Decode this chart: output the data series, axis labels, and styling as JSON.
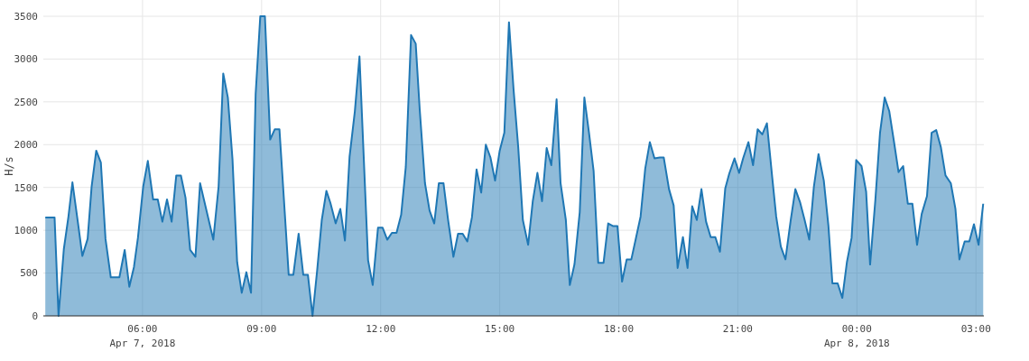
{
  "chart_data": {
    "type": "area",
    "ylabel": "H/s",
    "color": "#1f77b4",
    "grid": true,
    "xlim": [
      "2018-04-07T03:30",
      "2018-04-08T03:12"
    ],
    "ylim": [
      0,
      3500
    ],
    "xticks": [
      {
        "value": "2018-04-07T06:00",
        "label": "06:00\nApr 7, 2018"
      },
      {
        "value": "2018-04-07T09:00",
        "label": "09:00"
      },
      {
        "value": "2018-04-07T12:00",
        "label": "12:00"
      },
      {
        "value": "2018-04-07T15:00",
        "label": "15:00"
      },
      {
        "value": "2018-04-07T18:00",
        "label": "18:00"
      },
      {
        "value": "2018-04-07T21:00",
        "label": "21:00"
      },
      {
        "value": "2018-04-08T00:00",
        "label": "00:00\nApr 8, 2018"
      },
      {
        "value": "2018-04-08T03:00",
        "label": "03:00"
      }
    ],
    "yticks": [
      0,
      500,
      1000,
      1500,
      2000,
      2500,
      3000,
      3500
    ],
    "x": [
      "2018-04-07T03:33",
      "2018-04-07T03:47",
      "2018-04-07T03:53",
      "2018-04-07T04:01",
      "2018-04-07T04:08",
      "2018-04-07T04:14",
      "2018-04-07T04:23",
      "2018-04-07T04:29",
      "2018-04-07T04:37",
      "2018-04-07T04:43",
      "2018-04-07T04:50",
      "2018-04-07T04:57",
      "2018-04-07T05:04",
      "2018-04-07T05:12",
      "2018-04-07T05:25",
      "2018-04-07T05:33",
      "2018-04-07T05:40",
      "2018-04-07T05:47",
      "2018-04-07T05:53",
      "2018-04-07T06:01",
      "2018-04-07T06:08",
      "2018-04-07T06:16",
      "2018-04-07T06:23",
      "2018-04-07T06:30",
      "2018-04-07T06:37",
      "2018-04-07T06:44",
      "2018-04-07T06:51",
      "2018-04-07T06:58",
      "2018-04-07T07:05",
      "2018-04-07T07:12",
      "2018-04-07T07:20",
      "2018-04-07T07:27",
      "2018-04-07T07:47",
      "2018-04-07T07:55",
      "2018-04-07T08:02",
      "2018-04-07T08:09",
      "2018-04-07T08:16",
      "2018-04-07T08:23",
      "2018-04-07T08:30",
      "2018-04-07T08:37",
      "2018-04-07T08:44",
      "2018-04-07T08:51",
      "2018-04-07T08:58",
      "2018-04-07T09:05",
      "2018-04-07T09:13",
      "2018-04-07T09:20",
      "2018-04-07T09:27",
      "2018-04-07T09:41",
      "2018-04-07T09:48",
      "2018-04-07T09:56",
      "2018-04-07T10:03",
      "2018-04-07T10:10",
      "2018-04-07T10:17",
      "2018-04-07T10:24",
      "2018-04-07T10:31",
      "2018-04-07T10:38",
      "2018-04-07T10:44",
      "2018-04-07T10:52",
      "2018-04-07T10:59",
      "2018-04-07T11:06",
      "2018-04-07T11:13",
      "2018-04-07T11:21",
      "2018-04-07T11:28",
      "2018-04-07T11:41",
      "2018-04-07T11:48",
      "2018-04-07T11:56",
      "2018-04-07T12:03",
      "2018-04-07T12:10",
      "2018-04-07T12:17",
      "2018-04-07T12:24",
      "2018-04-07T12:31",
      "2018-04-07T12:38",
      "2018-04-07T12:46",
      "2018-04-07T12:53",
      "2018-04-07T12:59",
      "2018-04-07T13:07",
      "2018-04-07T13:14",
      "2018-04-07T13:21",
      "2018-04-07T13:28",
      "2018-04-07T13:35",
      "2018-04-07T13:42",
      "2018-04-07T13:50",
      "2018-04-07T13:57",
      "2018-04-07T14:04",
      "2018-04-07T14:11",
      "2018-04-07T14:18",
      "2018-04-07T14:25",
      "2018-04-07T14:32",
      "2018-04-07T14:39",
      "2018-04-07T14:46",
      "2018-04-07T14:53",
      "2018-04-07T15:00",
      "2018-04-07T15:07",
      "2018-04-07T15:14",
      "2018-04-07T15:21",
      "2018-04-07T15:28",
      "2018-04-07T15:35",
      "2018-04-07T15:43",
      "2018-04-07T15:50",
      "2018-04-07T15:57",
      "2018-04-07T16:04",
      "2018-04-07T16:11",
      "2018-04-07T16:18",
      "2018-04-07T16:26",
      "2018-04-07T16:32",
      "2018-04-07T16:40",
      "2018-04-07T16:46",
      "2018-04-07T16:53",
      "2018-04-07T17:01",
      "2018-04-07T17:08",
      "2018-04-07T17:15",
      "2018-04-07T17:22",
      "2018-04-07T17:29",
      "2018-04-07T17:37",
      "2018-04-07T17:44",
      "2018-04-07T17:51",
      "2018-04-07T17:58",
      "2018-04-07T18:05",
      "2018-04-07T18:12",
      "2018-04-07T18:19",
      "2018-04-07T18:26",
      "2018-04-07T18:33",
      "2018-04-07T18:40",
      "2018-04-07T18:47",
      "2018-04-07T18:54",
      "2018-04-07T19:02",
      "2018-04-07T19:08",
      "2018-04-07T19:16",
      "2018-04-07T19:23",
      "2018-04-07T19:29",
      "2018-04-07T19:37",
      "2018-04-07T19:44",
      "2018-04-07T19:51",
      "2018-04-07T19:58",
      "2018-04-07T20:05",
      "2018-04-07T20:12",
      "2018-04-07T20:19",
      "2018-04-07T20:26",
      "2018-04-07T20:33",
      "2018-04-07T20:41",
      "2018-04-07T20:47",
      "2018-04-07T20:55",
      "2018-04-07T21:02",
      "2018-04-07T21:08",
      "2018-04-07T21:16",
      "2018-04-07T21:23",
      "2018-04-07T21:30",
      "2018-04-07T21:37",
      "2018-04-07T21:44",
      "2018-04-07T21:52",
      "2018-04-07T21:58",
      "2018-04-07T22:05",
      "2018-04-07T22:12",
      "2018-04-07T22:20",
      "2018-04-07T22:27",
      "2018-04-07T22:34",
      "2018-04-07T22:41",
      "2018-04-07T22:48",
      "2018-04-07T22:55",
      "2018-04-07T23:02",
      "2018-04-07T23:10",
      "2018-04-07T23:17",
      "2018-04-07T23:23",
      "2018-04-07T23:31",
      "2018-04-07T23:38",
      "2018-04-07T23:45",
      "2018-04-07T23:52",
      "2018-04-07T23:59",
      "2018-04-08T00:07",
      "2018-04-08T00:14",
      "2018-04-08T00:20",
      "2018-04-08T00:28",
      "2018-04-08T00:35",
      "2018-04-08T00:42",
      "2018-04-08T00:49",
      "2018-04-08T00:56",
      "2018-04-08T01:03",
      "2018-04-08T01:10",
      "2018-04-08T01:17",
      "2018-04-08T01:24",
      "2018-04-08T01:31",
      "2018-04-08T01:38",
      "2018-04-08T01:46",
      "2018-04-08T01:53",
      "2018-04-08T02:00",
      "2018-04-08T02:07",
      "2018-04-08T02:14",
      "2018-04-08T02:22",
      "2018-04-08T02:29",
      "2018-04-08T02:35",
      "2018-04-08T02:43",
      "2018-04-08T02:50",
      "2018-04-08T02:57",
      "2018-04-08T03:04",
      "2018-04-08T03:11"
    ],
    "values": [
      1150,
      1150,
      0,
      780,
      1160,
      1560,
      1050,
      700,
      900,
      1510,
      1930,
      1790,
      900,
      450,
      450,
      770,
      340,
      570,
      910,
      1510,
      1810,
      1360,
      1360,
      1100,
      1360,
      1100,
      1640,
      1640,
      1380,
      770,
      690,
      1550,
      890,
      1510,
      2830,
      2550,
      1830,
      630,
      270,
      510,
      270,
      2590,
      3500,
      3500,
      2060,
      2180,
      2180,
      480,
      480,
      960,
      480,
      480,
      0,
      530,
      1120,
      1460,
      1320,
      1080,
      1250,
      880,
      1860,
      2390,
      3030,
      650,
      360,
      1030,
      1030,
      890,
      970,
      970,
      1180,
      1740,
      3280,
      3180,
      2420,
      1550,
      1230,
      1080,
      1550,
      1550,
      1120,
      690,
      960,
      960,
      870,
      1150,
      1710,
      1440,
      2000,
      1850,
      1580,
      1930,
      2140,
      3430,
      2640,
      1970,
      1120,
      830,
      1340,
      1670,
      1340,
      1960,
      1760,
      2530,
      1550,
      1120,
      360,
      600,
      1210,
      2550,
      2140,
      1690,
      620,
      620,
      1080,
      1050,
      1050,
      400,
      660,
      660,
      910,
      1160,
      1720,
      2030,
      1840,
      1850,
      1850,
      1480,
      1290,
      560,
      920,
      560,
      1280,
      1120,
      1480,
      1100,
      920,
      920,
      750,
      1490,
      1660,
      1840,
      1670,
      1840,
      2030,
      1760,
      2180,
      2120,
      2250,
      1620,
      1160,
      810,
      660,
      1120,
      1480,
      1330,
      1120,
      890,
      1510,
      1890,
      1580,
      1050,
      380,
      380,
      210,
      630,
      910,
      1820,
      1750,
      1450,
      600,
      1360,
      2140,
      2550,
      2390,
      2040,
      1680,
      1750,
      1310,
      1310,
      830,
      1190,
      1400,
      2140,
      2170,
      1970,
      1640,
      1550,
      1250,
      660,
      870,
      870,
      1070,
      830,
      1310
    ]
  }
}
